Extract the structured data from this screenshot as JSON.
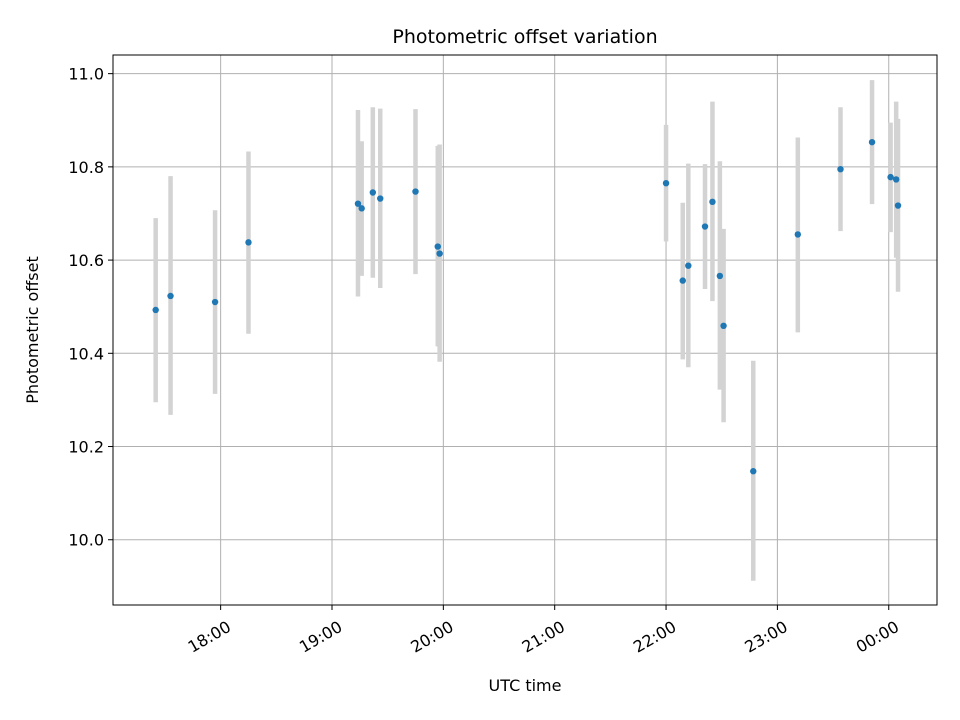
{
  "chart_data": {
    "type": "scatter",
    "title": "Photometric offset variation",
    "xlabel": "UTC time",
    "ylabel": "Photometric offset",
    "x_tick_labels": [
      "18:00",
      "19:00",
      "20:00",
      "21:00",
      "22:00",
      "23:00",
      "00:00"
    ],
    "x_tick_values": [
      "18:00",
      "19:00",
      "20:00",
      "21:00",
      "22:00",
      "23:00",
      "24:00"
    ],
    "y_tick_labels": [
      "10.0",
      "10.2",
      "10.4",
      "10.6",
      "10.8",
      "11.0"
    ],
    "y_tick_values": [
      10.0,
      10.2,
      10.4,
      10.6,
      10.8,
      11.0
    ],
    "xlim": [
      "17:02",
      "24:26"
    ],
    "ylim": [
      9.86,
      11.04
    ],
    "grid": true,
    "colors": {
      "point": "#1f77b4",
      "errorbar": "#d3d3d3",
      "grid": "#b0b0b0"
    },
    "points": [
      {
        "x": "17:25",
        "y": 10.493,
        "yerr_low": 10.295,
        "yerr_high": 10.69
      },
      {
        "x": "17:33",
        "y": 10.523,
        "yerr_low": 10.268,
        "yerr_high": 10.78
      },
      {
        "x": "17:57",
        "y": 10.51,
        "yerr_low": 10.313,
        "yerr_high": 10.707
      },
      {
        "x": "18:15",
        "y": 10.638,
        "yerr_low": 10.442,
        "yerr_high": 10.833
      },
      {
        "x": "19:14",
        "y": 10.721,
        "yerr_low": 10.522,
        "yerr_high": 10.922
      },
      {
        "x": "19:16",
        "y": 10.711,
        "yerr_low": 10.566,
        "yerr_high": 10.855
      },
      {
        "x": "19:22",
        "y": 10.745,
        "yerr_low": 10.562,
        "yerr_high": 10.928
      },
      {
        "x": "19:26",
        "y": 10.732,
        "yerr_low": 10.54,
        "yerr_high": 10.925
      },
      {
        "x": "19:45",
        "y": 10.747,
        "yerr_low": 10.57,
        "yerr_high": 10.924
      },
      {
        "x": "19:57",
        "y": 10.629,
        "yerr_low": 10.415,
        "yerr_high": 10.845
      },
      {
        "x": "19:58",
        "y": 10.614,
        "yerr_low": 10.382,
        "yerr_high": 10.848
      },
      {
        "x": "22:00",
        "y": 10.765,
        "yerr_low": 10.64,
        "yerr_high": 10.89
      },
      {
        "x": "22:09",
        "y": 10.556,
        "yerr_low": 10.387,
        "yerr_high": 10.723
      },
      {
        "x": "22:12",
        "y": 10.588,
        "yerr_low": 10.37,
        "yerr_high": 10.807
      },
      {
        "x": "22:21",
        "y": 10.672,
        "yerr_low": 10.538,
        "yerr_high": 10.806
      },
      {
        "x": "22:25",
        "y": 10.725,
        "yerr_low": 10.512,
        "yerr_high": 10.94
      },
      {
        "x": "22:29",
        "y": 10.566,
        "yerr_low": 10.322,
        "yerr_high": 10.812
      },
      {
        "x": "22:31",
        "y": 10.459,
        "yerr_low": 10.252,
        "yerr_high": 10.667
      },
      {
        "x": "22:47",
        "y": 10.147,
        "yerr_low": 9.912,
        "yerr_high": 10.384
      },
      {
        "x": "23:11",
        "y": 10.655,
        "yerr_low": 10.445,
        "yerr_high": 10.863
      },
      {
        "x": "23:34",
        "y": 10.795,
        "yerr_low": 10.662,
        "yerr_high": 10.928
      },
      {
        "x": "23:51",
        "y": 10.853,
        "yerr_low": 10.72,
        "yerr_high": 10.986
      },
      {
        "x": "24:01",
        "y": 10.778,
        "yerr_low": 10.66,
        "yerr_high": 10.895
      },
      {
        "x": "24:04",
        "y": 10.773,
        "yerr_low": 10.605,
        "yerr_high": 10.94
      },
      {
        "x": "24:05",
        "y": 10.717,
        "yerr_low": 10.532,
        "yerr_high": 10.903
      }
    ]
  }
}
